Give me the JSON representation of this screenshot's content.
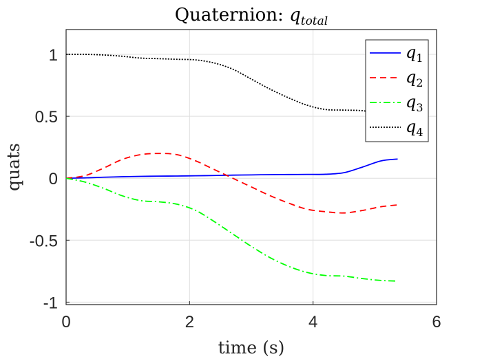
{
  "chart_data": {
    "type": "line",
    "title_main": "Quaternion: ",
    "title_var": "q",
    "title_sub": "total",
    "xlabel": "time (s)",
    "ylabel": "quats",
    "xlim": [
      0,
      6
    ],
    "ylim": [
      -1.02,
      1.2
    ],
    "xticks": [
      0,
      2,
      4,
      6
    ],
    "xtick_labels": [
      "0",
      "2",
      "4",
      "6"
    ],
    "yticks": [
      -1,
      -0.5,
      0,
      0.5,
      1
    ],
    "ytick_labels": [
      "-1",
      "-0.5",
      "0",
      "0.5",
      "1"
    ],
    "grid": true,
    "legend_position": "top-right",
    "x": [
      0,
      0.3,
      0.6,
      0.9,
      1.2,
      1.5,
      1.8,
      2.1,
      2.4,
      2.7,
      3.0,
      3.3,
      3.6,
      3.9,
      4.2,
      4.5,
      4.8,
      5.1,
      5.37
    ],
    "series": [
      {
        "name": "q1",
        "label_var": "q",
        "label_sub": "1",
        "color": "#0000ff",
        "dash": "",
        "values": [
          0,
          0.003,
          0.008,
          0.012,
          0.015,
          0.017,
          0.018,
          0.02,
          0.022,
          0.025,
          0.027,
          0.029,
          0.03,
          0.031,
          0.032,
          0.045,
          0.09,
          0.14,
          0.155
        ]
      },
      {
        "name": "q2",
        "label_var": "q",
        "label_sub": "2",
        "color": "#ff0000",
        "dash": "9,6",
        "values": [
          0,
          0.02,
          0.08,
          0.15,
          0.19,
          0.2,
          0.19,
          0.14,
          0.07,
          0.0,
          -0.07,
          -0.14,
          -0.2,
          -0.25,
          -0.27,
          -0.28,
          -0.26,
          -0.23,
          -0.215
        ]
      },
      {
        "name": "q3",
        "label_var": "q",
        "label_sub": "3",
        "color": "#00ff00",
        "dash": "10,4,2,4",
        "values": [
          0,
          -0.03,
          -0.08,
          -0.14,
          -0.18,
          -0.19,
          -0.21,
          -0.26,
          -0.35,
          -0.45,
          -0.55,
          -0.64,
          -0.71,
          -0.76,
          -0.785,
          -0.79,
          -0.81,
          -0.825,
          -0.83
        ]
      },
      {
        "name": "q4",
        "label_var": "q",
        "label_sub": "4",
        "color": "#000000",
        "dash": "2,2",
        "values": [
          1.0,
          1.0,
          0.995,
          0.985,
          0.97,
          0.965,
          0.96,
          0.955,
          0.93,
          0.88,
          0.8,
          0.72,
          0.65,
          0.59,
          0.555,
          0.55,
          0.545,
          0.52,
          0.5
        ]
      }
    ]
  }
}
